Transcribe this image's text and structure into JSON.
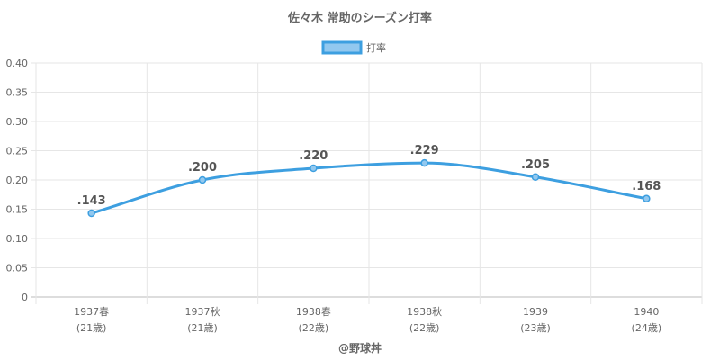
{
  "chart_data": {
    "type": "line",
    "title": "佐々木 常助のシーズン打率",
    "categories": [
      [
        "1937春",
        "(21歳)"
      ],
      [
        "1937秋",
        "(21歳)"
      ],
      [
        "1938春",
        "(22歳)"
      ],
      [
        "1938秋",
        "(22歳)"
      ],
      [
        "1939",
        "(23歳)"
      ],
      [
        "1940",
        "(24歳)"
      ]
    ],
    "series": [
      {
        "name": "打率",
        "values": [
          0.143,
          0.2,
          0.22,
          0.229,
          0.205,
          0.168
        ],
        "labels": [
          ".143",
          ".200",
          ".220",
          ".229",
          ".205",
          ".168"
        ],
        "color": "#3d9fe0",
        "fill": "#92c8ef"
      }
    ],
    "ylim": [
      0,
      0.4
    ],
    "yticks": [
      "0",
      "0.05",
      "0.10",
      "0.15",
      "0.20",
      "0.25",
      "0.30",
      "0.35",
      "0.40"
    ],
    "grid": true,
    "legend_position": "top-center"
  },
  "credit": "@野球丼"
}
